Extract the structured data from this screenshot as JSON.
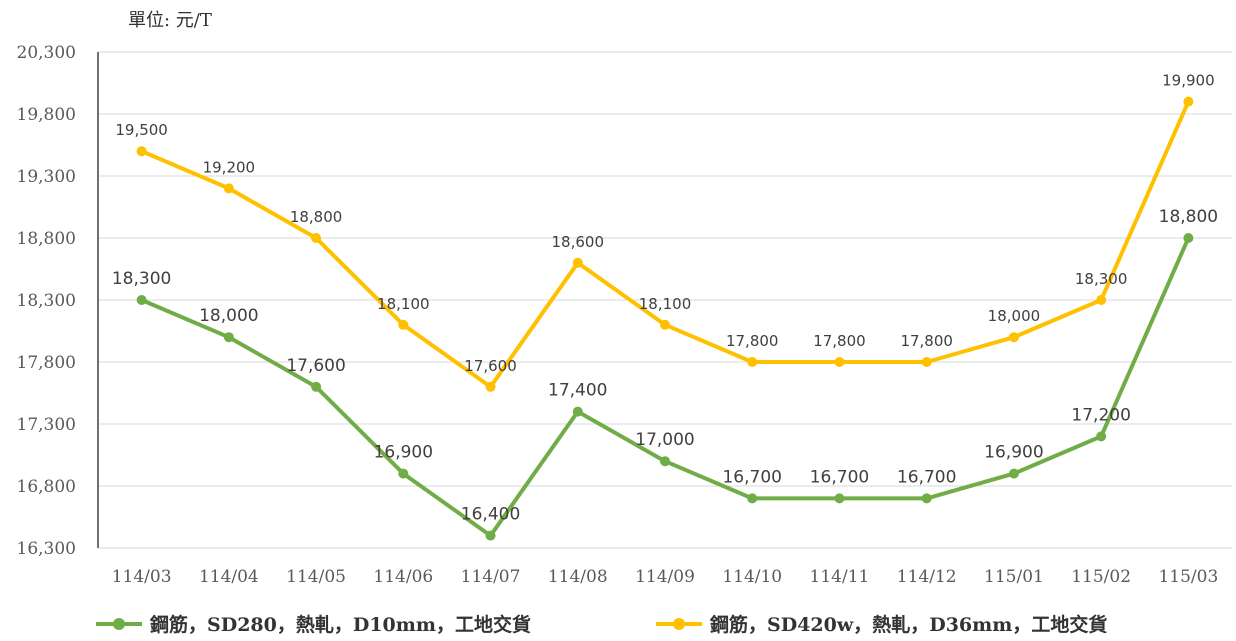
{
  "unit_label": "單位: 元/T",
  "chart_data": {
    "type": "line",
    "categories": [
      "114/03",
      "114/04",
      "114/05",
      "114/06",
      "114/07",
      "114/08",
      "114/09",
      "114/10",
      "114/11",
      "114/12",
      "115/01",
      "115/02",
      "115/03"
    ],
    "ylim": [
      16300,
      20300
    ],
    "yticks": [
      "16,300",
      "16,800",
      "17,300",
      "17,800",
      "18,300",
      "18,800",
      "19,300",
      "19,800",
      "20,300"
    ],
    "ytick_values": [
      16300,
      16800,
      17300,
      17800,
      18300,
      18800,
      19300,
      19800,
      20300
    ],
    "grid": "horizontal",
    "legend_position": "bottom",
    "series": [
      {
        "name": "鋼筋，SD280，熱軋，D10mm，工地交貨",
        "color": "#70AD47",
        "values": [
          18300,
          18000,
          17600,
          16900,
          16400,
          17400,
          17000,
          16700,
          16700,
          16700,
          16900,
          17200,
          18800
        ],
        "labels": [
          "18,300",
          "18,000",
          "17,600",
          "16,900",
          "16,400",
          "17,400",
          "17,000",
          "16,700",
          "16,700",
          "16,700",
          "16,900",
          "17,200",
          "18,800"
        ]
      },
      {
        "name": "鋼筋，SD420w，熱軋，D36mm，工地交貨",
        "color": "#FFC000",
        "values": [
          19500,
          19200,
          18800,
          18100,
          17600,
          18600,
          18100,
          17800,
          17800,
          17800,
          18000,
          18300,
          19900
        ],
        "labels": [
          "19,500",
          "19,200",
          "18,800",
          "18,100",
          "17,600",
          "18,600",
          "18,100",
          "17,800",
          "17,800",
          "17,800",
          "18,000",
          "18,300",
          "19,900"
        ]
      }
    ]
  }
}
